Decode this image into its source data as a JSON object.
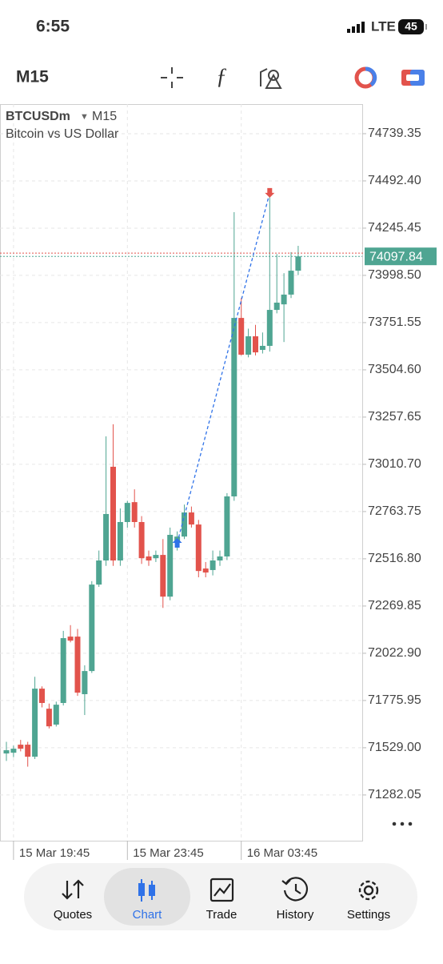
{
  "status_bar": {
    "time": "6:55",
    "network": "LTE",
    "battery": "45"
  },
  "toolbar": {
    "timeframe": "M15"
  },
  "chart_data": {
    "type": "candlestick",
    "title": "BTCUSDm",
    "timeframe": "M15",
    "subtitle": "Bitcoin vs US Dollar",
    "categories": [
      null,
      "15 Mar 19:45",
      null,
      null,
      null,
      null,
      null,
      null,
      null,
      null,
      null,
      null,
      null,
      null,
      null,
      null,
      null,
      "15 Mar 23:45",
      null,
      null,
      null,
      null,
      null,
      null,
      null,
      null,
      null,
      null,
      null,
      null,
      null,
      null,
      null,
      "16 Mar 03:45",
      null,
      null,
      null,
      null,
      null,
      null,
      null,
      null
    ],
    "series": [
      {
        "name": "BTCUSDm",
        "open": [
          71499,
          71503,
          71545,
          71545,
          71482,
          71838,
          71733,
          71650,
          71763,
          72110,
          72110,
          71809,
          71930,
          72382,
          72508,
          72998,
          72508,
          72709,
          72813,
          72709,
          72529,
          72520,
          72537,
          72319,
          72600,
          72633,
          72759,
          72696,
          72466,
          72458,
          72508,
          72529,
          72843,
          73776,
          73584,
          73680,
          73609,
          73630,
          73818,
          73847,
          73898,
          74023
        ],
        "high": [
          71560,
          71540,
          71570,
          71560,
          71900,
          71850,
          71760,
          71770,
          72140,
          72170,
          72150,
          71960,
          72400,
          72560,
          73157,
          73220,
          72780,
          72820,
          72880,
          72740,
          72560,
          72560,
          72620,
          72680,
          72660,
          72800,
          72790,
          72720,
          72500,
          72560,
          72560,
          72860,
          74329,
          73880,
          73720,
          73740,
          73700,
          74413,
          74110,
          74010,
          74120,
          74153
        ],
        "low": [
          71460,
          71480,
          71510,
          71430,
          71470,
          71740,
          71630,
          71640,
          71750,
          72080,
          71800,
          71700,
          71920,
          72370,
          72480,
          72480,
          72480,
          72680,
          72680,
          72490,
          72480,
          72500,
          72260,
          72300,
          72560,
          72620,
          72680,
          72420,
          72420,
          72430,
          72480,
          72510,
          72820,
          73580,
          73570,
          73580,
          73590,
          73600,
          73800,
          73650,
          73880,
          74000
        ],
        "close": [
          71516,
          71524,
          71524,
          71482,
          71838,
          71763,
          71641,
          71754,
          72102,
          72089,
          71817,
          71930,
          72382,
          72508,
          72751,
          72508,
          72709,
          72809,
          72709,
          72520,
          72508,
          72537,
          72319,
          72642,
          72633,
          72759,
          72696,
          72453,
          72445,
          72508,
          72529,
          72843,
          73776,
          73584,
          73680,
          73596,
          73630,
          73818,
          73856,
          73898,
          74023,
          74097.84
        ]
      }
    ],
    "up_color": "#4fa592",
    "down_color": "#e2534c",
    "ylim": [
      71043,
      74894
    ],
    "yticks": [
      74739.35,
      {
        "value": 74492.4,
        "label": "74492.40"
      },
      74245.45,
      {
        "value": 73998.5,
        "label": "73998.50"
      },
      73751.55,
      {
        "value": 73504.6,
        "label": "73504.60"
      },
      73257.65,
      {
        "value": 73010.7,
        "label": "73010.70"
      },
      72763.75,
      {
        "value": 72516.8,
        "label": "72516.80"
      },
      72269.85,
      {
        "value": 72022.9,
        "label": "72022.90"
      },
      71775.95,
      {
        "value": 71529,
        "label": "71529.00"
      },
      71282.05
    ],
    "grid": true,
    "last_price": 74097.84,
    "ask_price": 74115,
    "trade": {
      "open_index": 24,
      "open_price": 72600,
      "close_index": 37,
      "close_price": 74430
    }
  },
  "nav": [
    "Quotes",
    "Chart",
    "Trade",
    "History",
    "Settings"
  ]
}
